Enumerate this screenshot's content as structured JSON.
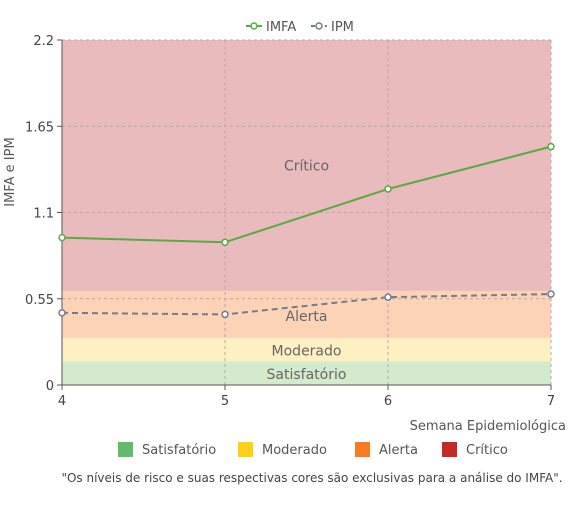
{
  "chart_data": {
    "type": "line",
    "x": [
      4,
      5,
      6,
      7
    ],
    "xlabel": "Semana Epidemiológica",
    "ylabel": "IMFA e IPM",
    "xlim": [
      4,
      7
    ],
    "ylim": [
      0,
      2.2
    ],
    "yticks": [
      0,
      0.55,
      1.1,
      1.65,
      2.2
    ],
    "ytick_labels": [
      "0",
      "0.55",
      "1.1",
      "1.65",
      "2.2"
    ],
    "xtick_labels": [
      "4",
      "5",
      "6",
      "7"
    ],
    "grid": true,
    "legend_position": "top-center",
    "series": [
      {
        "name": "IMFA",
        "values": [
          0.94,
          0.91,
          1.25,
          1.52
        ],
        "color": "#5aaa46",
        "style": "solid"
      },
      {
        "name": "IPM",
        "values": [
          0.46,
          0.45,
          0.56,
          0.58
        ],
        "color": "#777a8c",
        "style": "dashed"
      }
    ],
    "zones": [
      {
        "name": "Satisfatório",
        "from": 0,
        "to": 0.15,
        "color": "#d3ebcc",
        "legend_color": "#66bb6a"
      },
      {
        "name": "Moderado",
        "from": 0.15,
        "to": 0.3,
        "color": "#fdf0c2",
        "legend_color": "#fdd017"
      },
      {
        "name": "Alerta",
        "from": 0.3,
        "to": 0.6,
        "color": "#fdd3b7",
        "legend_color": "#f57c1f"
      },
      {
        "name": "Crítico",
        "from": 0.6,
        "to": 2.2,
        "color": "#eabbbd",
        "legend_color": "#c62828"
      }
    ],
    "zone_labels": [
      {
        "text": "Crítico",
        "x": 5.5,
        "y": 1.4
      },
      {
        "text": "Alerta",
        "x": 5.5,
        "y": 0.44
      },
      {
        "text": "Moderado",
        "x": 5.5,
        "y": 0.22
      },
      {
        "text": "Satisfatório",
        "x": 5.5,
        "y": 0.07
      }
    ],
    "note": "\"Os níveis de risco e suas respectivas cores são exclusivas para a análise do IMFA\"."
  }
}
